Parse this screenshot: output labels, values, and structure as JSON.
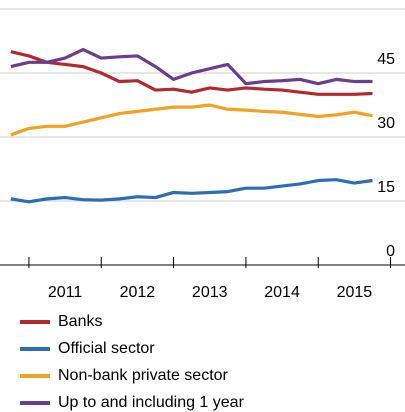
{
  "chart_data": {
    "type": "line",
    "x": [
      2010.75,
      2011.0,
      2011.25,
      2011.5,
      2011.75,
      2012.0,
      2012.25,
      2012.5,
      2012.75,
      2013.0,
      2013.25,
      2013.5,
      2013.75,
      2014.0,
      2014.25,
      2014.5,
      2014.75,
      2015.0,
      2015.25,
      2015.5,
      2015.75
    ],
    "series": [
      {
        "name": "Banks",
        "color": "#b22a2e",
        "values": [
          50,
          49,
          47.5,
          47,
          46.5,
          45,
          43,
          43.2,
          41,
          41.2,
          40.5,
          41.5,
          41,
          41.5,
          41.2,
          41,
          40.5,
          40,
          40,
          40,
          40.2
        ]
      },
      {
        "name": "Official sector",
        "color": "#2e6db4",
        "values": [
          15.5,
          14.8,
          15.5,
          15.8,
          15.3,
          15.2,
          15.5,
          16,
          15.8,
          17,
          16.8,
          17,
          17.2,
          18,
          18,
          18.5,
          19,
          19.8,
          20,
          19.2,
          19.8
        ]
      },
      {
        "name": "Non-bank private sector",
        "color": "#f0a321",
        "values": [
          30.5,
          32,
          32.5,
          32.5,
          33.5,
          34.5,
          35.5,
          36,
          36.5,
          37,
          37,
          37.5,
          36.5,
          36.3,
          36,
          35.8,
          35.3,
          34.8,
          35.2,
          35.8,
          35
        ]
      },
      {
        "name": "Up to and including 1 year",
        "color": "#6a3d8f",
        "values": [
          46.5,
          47.5,
          47.5,
          48.5,
          50.5,
          48.5,
          48.8,
          49,
          46.5,
          43.5,
          45,
          46,
          47,
          42.5,
          43,
          43.2,
          43.5,
          42.5,
          43.5,
          43,
          43
        ]
      }
    ],
    "xlim": [
      2010.6,
      2016.2
    ],
    "xticks": [
      {
        "value": 2011.5,
        "label": "2011"
      },
      {
        "value": 2012.5,
        "label": "2012"
      },
      {
        "value": 2013.5,
        "label": "2013"
      },
      {
        "value": 2014.5,
        "label": "2014"
      },
      {
        "value": 2015.5,
        "label": "2015"
      }
    ],
    "ylim": [
      0,
      60
    ],
    "yticks": [
      0,
      15,
      30,
      45
    ],
    "grid": true
  }
}
